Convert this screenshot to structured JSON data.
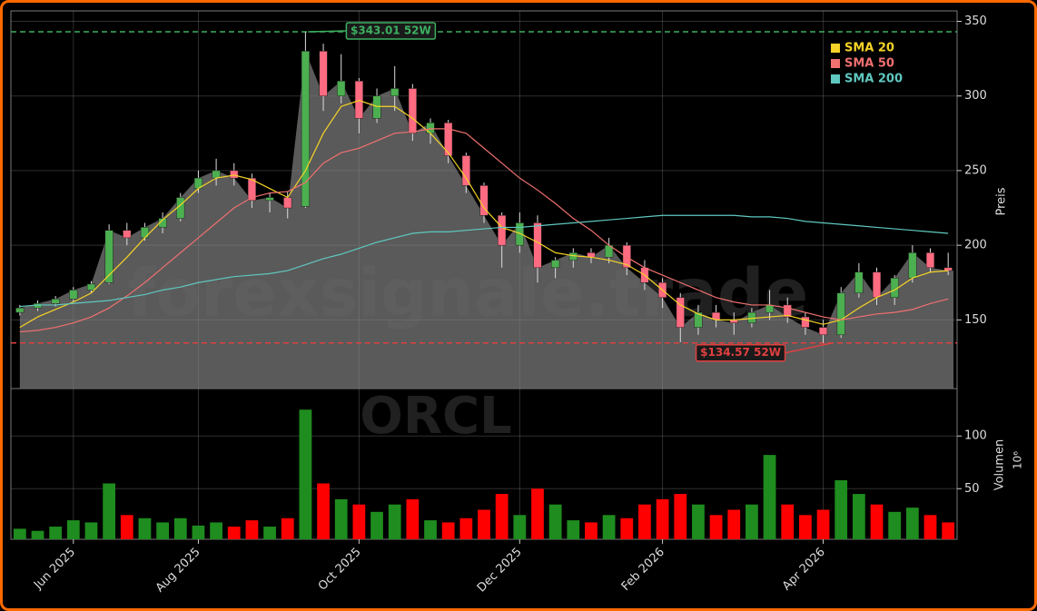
{
  "chart_data": [
    {
      "type": "candlestick",
      "y_label": "Preis",
      "open": [
        155,
        158,
        161,
        164,
        170,
        175,
        210,
        205,
        212,
        218,
        238,
        245,
        250,
        245,
        230,
        232,
        226,
        330,
        300,
        310,
        285,
        300,
        305,
        275,
        282,
        260,
        240,
        220,
        200,
        215,
        185,
        190,
        195,
        192,
        200,
        185,
        175,
        165,
        145,
        155,
        150,
        148,
        155,
        160,
        152,
        145,
        140,
        168,
        182,
        165,
        178,
        195,
        185
      ],
      "high": [
        160,
        163,
        166,
        172,
        176,
        214,
        215,
        215,
        222,
        235,
        250,
        258,
        255,
        248,
        235,
        236,
        343.01,
        335,
        328,
        312,
        305,
        320,
        308,
        285,
        284,
        262,
        242,
        222,
        222,
        220,
        192,
        198,
        198,
        205,
        202,
        190,
        178,
        168,
        160,
        160,
        155,
        158,
        170,
        165,
        155,
        150,
        172,
        188,
        185,
        180,
        200,
        198,
        195
      ],
      "low": [
        153,
        156,
        159,
        162,
        168,
        174,
        200,
        203,
        208,
        216,
        235,
        240,
        240,
        225,
        222,
        218,
        225,
        290,
        295,
        275,
        282,
        290,
        270,
        268,
        255,
        235,
        215,
        185,
        195,
        175,
        178,
        185,
        188,
        188,
        180,
        170,
        158,
        135,
        140,
        145,
        140,
        145,
        150,
        148,
        140,
        134.57,
        138,
        165,
        160,
        160,
        175,
        182,
        180
      ],
      "close": [
        158,
        161,
        164,
        170,
        174,
        210,
        205,
        212,
        218,
        232,
        245,
        250,
        245,
        230,
        232,
        225,
        330,
        300,
        310,
        285,
        300,
        305,
        275,
        282,
        260,
        240,
        220,
        200,
        215,
        185,
        190,
        195,
        192,
        200,
        185,
        175,
        165,
        145,
        155,
        150,
        148,
        155,
        160,
        152,
        145,
        140,
        168,
        182,
        165,
        178,
        195,
        185,
        183
      ],
      "up_color": "#4caf50",
      "down_color": "#ff6b81",
      "area_color": "#6a6a6a",
      "series": [
        {
          "name": "SMA 20",
          "color": "#f5d327",
          "values": [
            145,
            152,
            157,
            162,
            168,
            180,
            192,
            205,
            217,
            227,
            238,
            245,
            247,
            244,
            238,
            232,
            250,
            275,
            293,
            297,
            293,
            293,
            285,
            275,
            262,
            245,
            225,
            212,
            208,
            202,
            195,
            193,
            192,
            190,
            187,
            180,
            170,
            160,
            154,
            150,
            150,
            151,
            152,
            153,
            150,
            147,
            150,
            158,
            165,
            170,
            178,
            182,
            183
          ]
        },
        {
          "name": "SMA 50",
          "color": "#f07070",
          "values": [
            142,
            143,
            145,
            148,
            152,
            158,
            166,
            175,
            185,
            195,
            205,
            215,
            225,
            232,
            235,
            236,
            242,
            255,
            262,
            265,
            270,
            275,
            276,
            278,
            278,
            275,
            265,
            255,
            245,
            237,
            228,
            218,
            210,
            200,
            192,
            185,
            180,
            175,
            170,
            165,
            162,
            160,
            160,
            158,
            155,
            152,
            150,
            152,
            154,
            155,
            157,
            161,
            164
          ]
        },
        {
          "name": "SMA 200",
          "color": "#5fc8c0",
          "values": [
            159,
            160,
            160,
            161,
            162,
            163,
            165,
            167,
            170,
            172,
            175,
            177,
            179,
            180,
            181,
            183,
            187,
            191,
            194,
            198,
            202,
            205,
            208,
            209,
            209,
            210,
            211,
            212,
            212,
            213,
            214,
            215,
            216,
            217,
            218,
            219,
            220,
            220,
            220,
            220,
            220,
            219,
            219,
            218,
            216,
            215,
            214,
            213,
            212,
            211,
            210,
            209,
            208
          ]
        }
      ],
      "annotations": [
        {
          "text": "$343.01 52W",
          "value": 343.01,
          "color": "#3cb060"
        },
        {
          "text": "$134.57 52W",
          "value": 134.57,
          "color": "#e04040"
        }
      ],
      "ylim": [
        104,
        357
      ],
      "yticks": [
        150,
        200,
        250,
        300,
        350
      ],
      "grid": true,
      "legend": "top-right",
      "watermark": "forexsignale.trade"
    },
    {
      "type": "bar",
      "y_label": "Volumen",
      "y_unit": "10⁶",
      "watermark": "ORCL",
      "categories": [
        null,
        null,
        null,
        "Jun 2025",
        null,
        null,
        null,
        null,
        null,
        null,
        "Aug 2025",
        null,
        null,
        null,
        null,
        null,
        null,
        null,
        null,
        "Oct 2025",
        null,
        null,
        null,
        null,
        null,
        null,
        null,
        null,
        "Dec 2025",
        null,
        null,
        null,
        null,
        null,
        null,
        null,
        "Feb 2026",
        null,
        null,
        null,
        null,
        null,
        null,
        null,
        null,
        "Apr 2026",
        null,
        null,
        null,
        null,
        null,
        null,
        null
      ],
      "values": [
        12,
        10,
        14,
        20,
        18,
        55,
        25,
        22,
        18,
        22,
        15,
        18,
        14,
        20,
        14,
        22,
        125,
        55,
        40,
        35,
        28,
        35,
        40,
        20,
        18,
        22,
        30,
        45,
        25,
        50,
        35,
        20,
        18,
        25,
        22,
        35,
        40,
        45,
        35,
        25,
        30,
        35,
        82,
        35,
        25,
        30,
        58,
        45,
        35,
        28,
        32,
        25,
        18
      ],
      "up_color": "#1e8c1e",
      "down_color": "#ff0000",
      "ylim": [
        2,
        145
      ],
      "yticks": [
        50,
        100
      ],
      "grid": true
    }
  ]
}
